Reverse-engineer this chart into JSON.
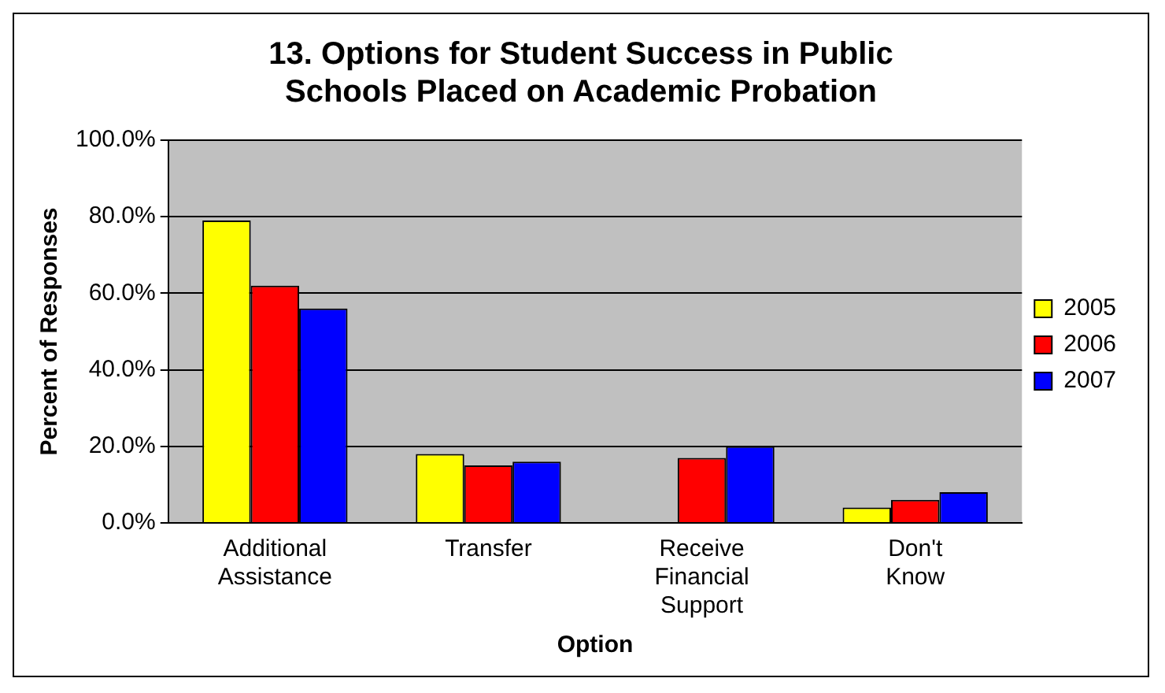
{
  "chart_data": {
    "type": "bar",
    "title": "13. Options for Student Success in Public Schools Placed on Academic Probation",
    "xlabel": "Option",
    "ylabel": "Percent of Responses",
    "categories": [
      "Additional Assistance",
      "Transfer",
      "Receive Financial Support",
      "Don't Know"
    ],
    "series": [
      {
        "name": "2005",
        "color": "#ffff00",
        "values": [
          79,
          18,
          0,
          4
        ]
      },
      {
        "name": "2006",
        "color": "#ff0000",
        "values": [
          62,
          15,
          17,
          6
        ]
      },
      {
        "name": "2007",
        "color": "#0000ff",
        "values": [
          56,
          16,
          20,
          8
        ]
      }
    ],
    "ylim": [
      0,
      100
    ],
    "yticks": [
      {
        "value": 0,
        "label": "0.0%"
      },
      {
        "value": 20,
        "label": "20.0%"
      },
      {
        "value": 40,
        "label": "40.0%"
      },
      {
        "value": 60,
        "label": "60.0%"
      },
      {
        "value": 80,
        "label": "80.0%"
      },
      {
        "value": 100,
        "label": "100.0%"
      }
    ],
    "grid": "y",
    "legend": "right"
  }
}
